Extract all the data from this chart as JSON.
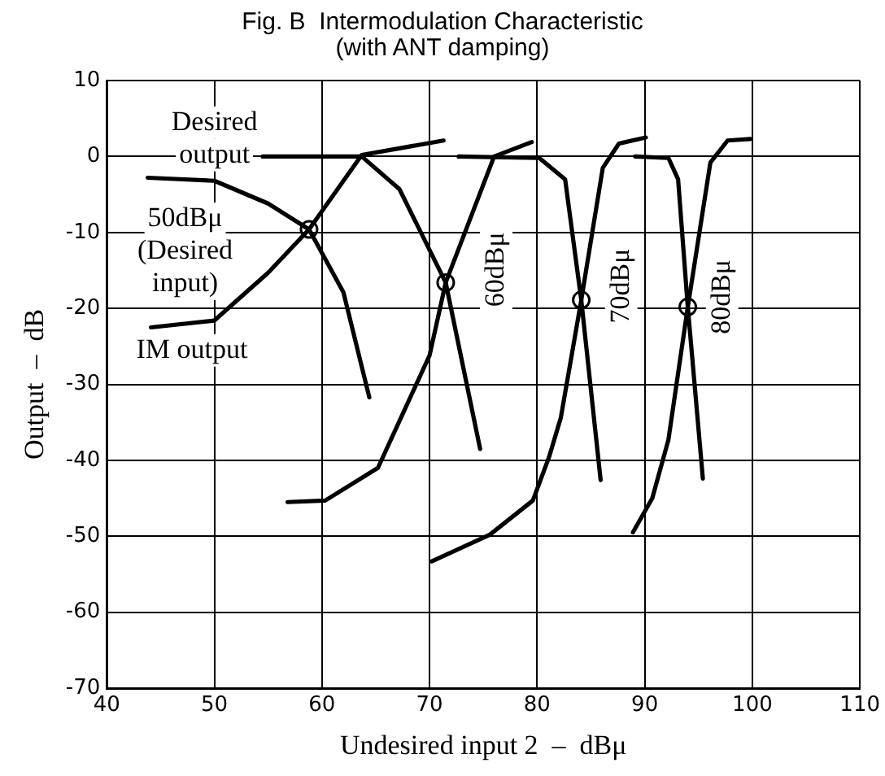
{
  "chart_data": {
    "type": "line",
    "title": "Fig. B  Intermodulation Characteristic\n(with ANT damping)",
    "xlabel": "Undesired input 2  –  dBμ",
    "ylabel": "Output  –  dB",
    "xlim": [
      40,
      110
    ],
    "xticks": [
      40,
      50,
      60,
      70,
      80,
      90,
      100,
      110
    ],
    "ylim": [
      -70,
      10
    ],
    "yticks": [
      -70,
      -60,
      -50,
      -40,
      -30,
      -20,
      -10,
      0,
      10
    ],
    "grid": true,
    "legend": false,
    "line_style": "solid",
    "series": [
      {
        "color": "#000000",
        "x": [
          43.8,
          50,
          55,
          58.8,
          62,
          64.4
        ],
        "values": [
          -2.8,
          -3.2,
          -6.2,
          -9.6,
          -17.9,
          -31.7
        ]
      },
      {
        "color": "#000000",
        "x": [
          44.1,
          50,
          55,
          58.8,
          63.7,
          71.3
        ],
        "values": [
          -22.5,
          -21.6,
          -15.3,
          -9.6,
          0.2,
          2.1
        ]
      },
      {
        "color": "#000000",
        "x": [
          54.5,
          63.7,
          67.2,
          71.5,
          74.7
        ],
        "values": [
          0,
          0,
          -4.3,
          -16.6,
          -38.5
        ]
      },
      {
        "color": "#000000",
        "x": [
          56.8,
          60.3,
          65.2,
          70,
          71.5,
          76,
          79.5
        ],
        "values": [
          -45.5,
          -45.3,
          -41,
          -26.2,
          -16.6,
          0,
          1.9
        ]
      },
      {
        "color": "#000000",
        "x": [
          72.7,
          80.2,
          82.6,
          84.1,
          85.9
        ],
        "values": [
          0,
          -0.2,
          -3,
          -18.9,
          -42.6
        ]
      },
      {
        "color": "#000000",
        "x": [
          70.2,
          75.6,
          79.6,
          81.1,
          82.2,
          84.1,
          86.1,
          87.6,
          90.1
        ],
        "values": [
          -53.3,
          -49.8,
          -45.3,
          -39.6,
          -34.4,
          -18.9,
          -1.5,
          1.7,
          2.5
        ]
      },
      {
        "color": "#000000",
        "x": [
          89.1,
          92.2,
          93.1,
          94,
          95.4
        ],
        "values": [
          0,
          -0.2,
          -3,
          -19.8,
          -42.4
        ]
      },
      {
        "color": "#000000",
        "x": [
          88.9,
          90.7,
          92.2,
          94,
          96.1,
          97.7,
          99.8
        ],
        "values": [
          -49.5,
          -45,
          -37.3,
          -19.8,
          -0.8,
          2.1,
          2.3
        ]
      },
      {
        "type": "scatter",
        "color": "#000000",
        "marker": "circle",
        "x": [
          58.8,
          71.5,
          84.1,
          94
        ],
        "values": [
          -9.6,
          -16.6,
          -18.9,
          -19.8
        ]
      }
    ],
    "annotations": [
      "Desired\noutput",
      "50dBμ\n(Desired\ninput)",
      "IM output",
      "60dBμ",
      "70dBμ",
      "80dBμ"
    ]
  }
}
